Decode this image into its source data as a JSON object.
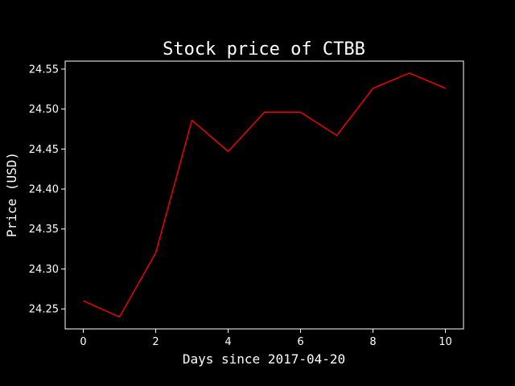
{
  "chart_data": {
    "type": "line",
    "title": "Stock price of CTBB",
    "xlabel": "Days since 2017-04-20",
    "ylabel": "Price (USD)",
    "x": [
      0,
      1,
      2,
      3,
      4,
      5,
      6,
      7,
      8,
      9,
      10
    ],
    "series": [
      {
        "values": [
          24.26,
          24.24,
          24.32,
          24.486,
          24.447,
          24.496,
          24.496,
          24.467,
          24.526,
          24.545,
          24.526
        ],
        "color": "#ff0000"
      }
    ],
    "xlim": [
      -0.5,
      10.5
    ],
    "ylim": [
      24.225,
      24.56
    ],
    "xticks": [
      0,
      2,
      4,
      6,
      8,
      10
    ],
    "xtick_labels": [
      "0",
      "2",
      "4",
      "6",
      "8",
      "10"
    ],
    "yticks": [
      24.25,
      24.3,
      24.35,
      24.4,
      24.45,
      24.5,
      24.55
    ],
    "ytick_labels": [
      "24.25",
      "24.30",
      "24.35",
      "24.40",
      "24.45",
      "24.50",
      "24.55"
    ],
    "grid": false,
    "background": "#000000",
    "foreground": "#ffffff"
  }
}
